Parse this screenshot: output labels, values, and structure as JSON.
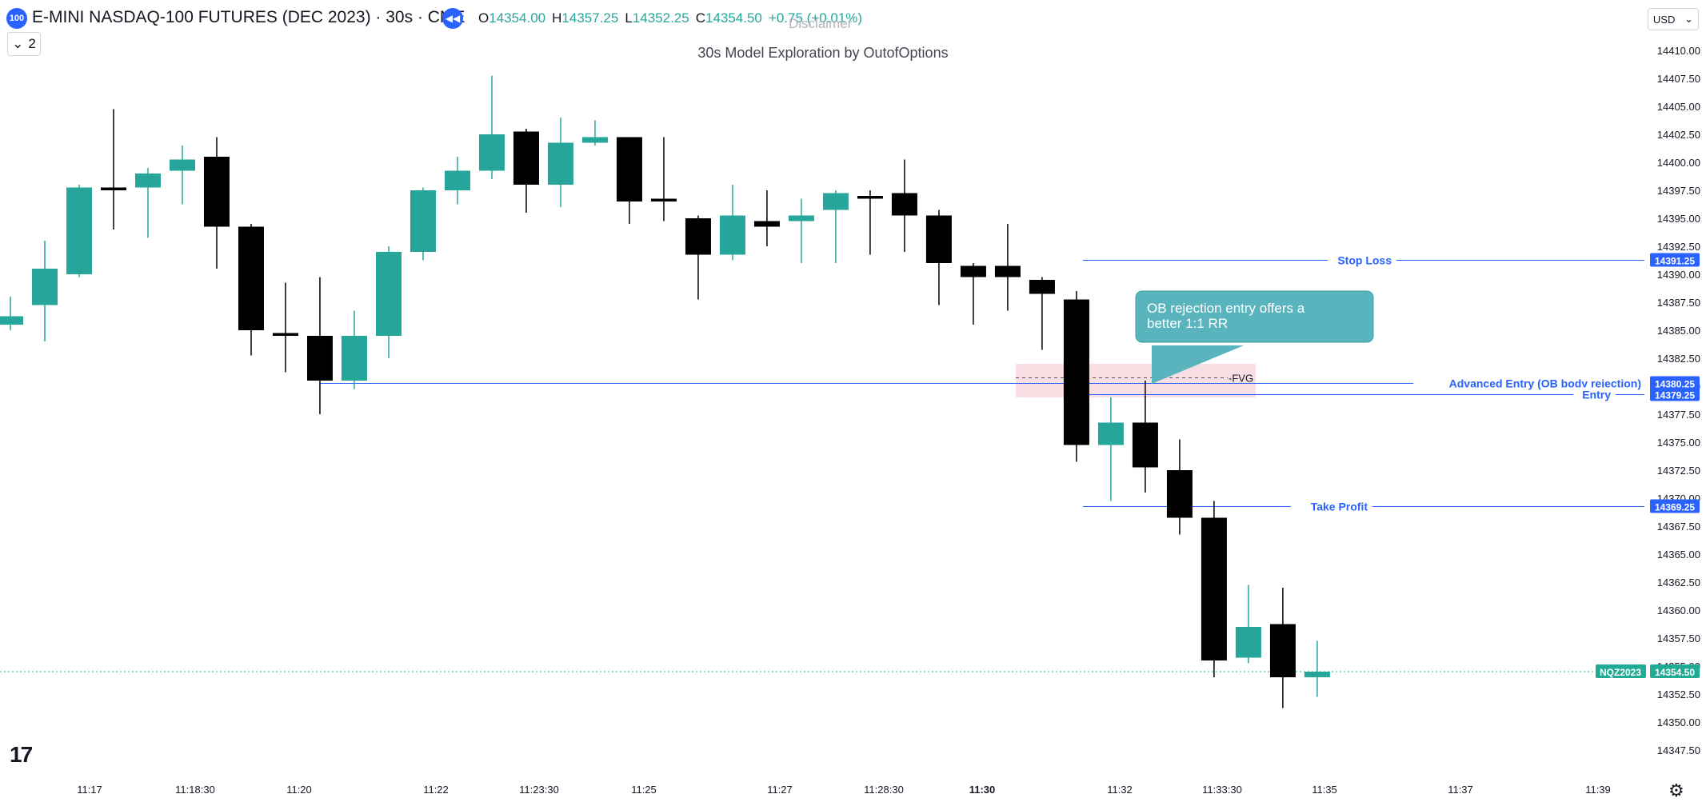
{
  "header": {
    "symbol_badge": "100",
    "title": "E-MINI NASDAQ-100 FUTURES (DEC 2023) · 30s · CME",
    "ohlc": {
      "o_label": "O",
      "o": "14354.00",
      "h_label": "H",
      "h": "14357.25",
      "l_label": "L",
      "l": "14352.25",
      "c_label": "C",
      "c": "14354.50",
      "change": "+0.75 (+0.01%)"
    },
    "collapse_count": "2",
    "disclaimer": "Disclaimer",
    "subtitle": "30s Model Exploration by OutofOptions",
    "currency": "USD"
  },
  "colors": {
    "up": "#26a69a",
    "down": "#000000",
    "line": "#2962ff",
    "fvg": "#f8d7dc",
    "callout": "#5ab4bd",
    "last": "#22ab94"
  },
  "chart_data": {
    "type": "candlestick",
    "price_axis": {
      "min": 14346.5,
      "max": 14411.25,
      "ticks": [
        "14410.00",
        "14407.50",
        "14405.00",
        "14402.50",
        "14400.00",
        "14397.50",
        "14395.00",
        "14392.50",
        "14390.00",
        "14387.50",
        "14385.00",
        "14382.50",
        "14380.00",
        "14377.50",
        "14375.00",
        "14372.50",
        "14370.00",
        "14367.50",
        "14365.00",
        "14362.50",
        "14360.00",
        "14357.50",
        "14355.00",
        "14352.50",
        "14350.00",
        "14347.50"
      ]
    },
    "time_ticks": [
      "11:17",
      "11:18:30",
      "11:20",
      "11:22",
      "11:23:30",
      "11:25",
      "11:27",
      "11:28:30",
      "11:30",
      "11:32",
      "11:33:30",
      "11:35",
      "11:37",
      "11:39"
    ],
    "candles": [
      {
        "o": 14385.5,
        "h": 14388.0,
        "l": 14385.0,
        "c": 14386.25
      },
      {
        "o": 14387.25,
        "h": 14393.0,
        "l": 14384.0,
        "c": 14390.5
      },
      {
        "o": 14390.0,
        "h": 14398.0,
        "l": 14389.75,
        "c": 14397.75
      },
      {
        "o": 14397.75,
        "h": 14404.75,
        "l": 14394.0,
        "c": 14397.5
      },
      {
        "o": 14397.75,
        "h": 14399.5,
        "l": 14393.25,
        "c": 14399.0
      },
      {
        "o": 14399.25,
        "h": 14401.5,
        "l": 14396.25,
        "c": 14400.25
      },
      {
        "o": 14400.5,
        "h": 14402.25,
        "l": 14390.5,
        "c": 14394.25
      },
      {
        "o": 14394.25,
        "h": 14394.5,
        "l": 14382.75,
        "c": 14385.0
      },
      {
        "o": 14384.75,
        "h": 14389.25,
        "l": 14381.25,
        "c": 14384.5
      },
      {
        "o": 14384.5,
        "h": 14389.75,
        "l": 14377.5,
        "c": 14380.5
      },
      {
        "o": 14380.5,
        "h": 14386.75,
        "l": 14379.75,
        "c": 14384.5
      },
      {
        "o": 14384.5,
        "h": 14392.5,
        "l": 14382.5,
        "c": 14392.0
      },
      {
        "o": 14392.0,
        "h": 14397.75,
        "l": 14391.25,
        "c": 14397.5
      },
      {
        "o": 14397.5,
        "h": 14400.5,
        "l": 14396.25,
        "c": 14399.25
      },
      {
        "o": 14399.25,
        "h": 14407.75,
        "l": 14398.5,
        "c": 14402.5
      },
      {
        "o": 14402.75,
        "h": 14403.0,
        "l": 14395.5,
        "c": 14398.0
      },
      {
        "o": 14398.0,
        "h": 14404.0,
        "l": 14396.0,
        "c": 14401.75
      },
      {
        "o": 14401.75,
        "h": 14403.75,
        "l": 14401.5,
        "c": 14402.25
      },
      {
        "o": 14402.25,
        "h": 14402.25,
        "l": 14394.5,
        "c": 14396.5
      },
      {
        "o": 14396.75,
        "h": 14402.25,
        "l": 14394.75,
        "c": 14396.5
      },
      {
        "o": 14395.0,
        "h": 14395.25,
        "l": 14387.75,
        "c": 14391.75
      },
      {
        "o": 14391.75,
        "h": 14398.0,
        "l": 14391.25,
        "c": 14395.25
      },
      {
        "o": 14394.75,
        "h": 14397.5,
        "l": 14392.5,
        "c": 14394.25
      },
      {
        "o": 14394.75,
        "h": 14396.75,
        "l": 14391.0,
        "c": 14395.25
      },
      {
        "o": 14395.75,
        "h": 14397.5,
        "l": 14391.0,
        "c": 14397.25
      },
      {
        "o": 14397.0,
        "h": 14397.5,
        "l": 14391.75,
        "c": 14396.75
      },
      {
        "o": 14397.25,
        "h": 14400.25,
        "l": 14392.0,
        "c": 14395.25
      },
      {
        "o": 14395.25,
        "h": 14395.75,
        "l": 14387.25,
        "c": 14391.0
      },
      {
        "o": 14390.75,
        "h": 14391.0,
        "l": 14385.5,
        "c": 14389.75
      },
      {
        "o": 14390.75,
        "h": 14394.5,
        "l": 14386.75,
        "c": 14389.75
      },
      {
        "o": 14389.5,
        "h": 14389.75,
        "l": 14383.25,
        "c": 14388.25
      },
      {
        "o": 14387.75,
        "h": 14388.5,
        "l": 14373.25,
        "c": 14374.75
      },
      {
        "o": 14374.75,
        "h": 14379.0,
        "l": 14369.75,
        "c": 14376.75
      },
      {
        "o": 14376.75,
        "h": 14380.5,
        "l": 14370.5,
        "c": 14372.75
      },
      {
        "o": 14372.5,
        "h": 14375.25,
        "l": 14366.75,
        "c": 14368.25
      },
      {
        "o": 14368.25,
        "h": 14369.75,
        "l": 14354.0,
        "c": 14355.5
      },
      {
        "o": 14355.75,
        "h": 14362.25,
        "l": 14355.25,
        "c": 14358.5
      },
      {
        "o": 14358.75,
        "h": 14362.0,
        "l": 14351.25,
        "c": 14354.0
      },
      {
        "o": 14354.0,
        "h": 14357.25,
        "l": 14352.25,
        "c": 14354.5
      }
    ],
    "levels": [
      {
        "name": "Stop Loss",
        "price": 14391.25,
        "price_label": "14391.25"
      },
      {
        "name": "Advanced Entry (OB body rejection)",
        "price": 14380.25,
        "price_label": "14380.25"
      },
      {
        "name": "Entry",
        "price": 14379.25,
        "price_label": "14379.25"
      },
      {
        "name": "Take Profit",
        "price": 14369.25,
        "price_label": "14369.25"
      }
    ],
    "fvg": {
      "label": "-FVG",
      "top": 14382.0,
      "bottom": 14379.0
    },
    "callout": {
      "line1": "OB rejection entry offers a",
      "line2": "better 1:1 RR"
    },
    "last_price": {
      "symbol": "NQZ2023",
      "price": 14354.5,
      "price_label": "14354.50"
    }
  }
}
